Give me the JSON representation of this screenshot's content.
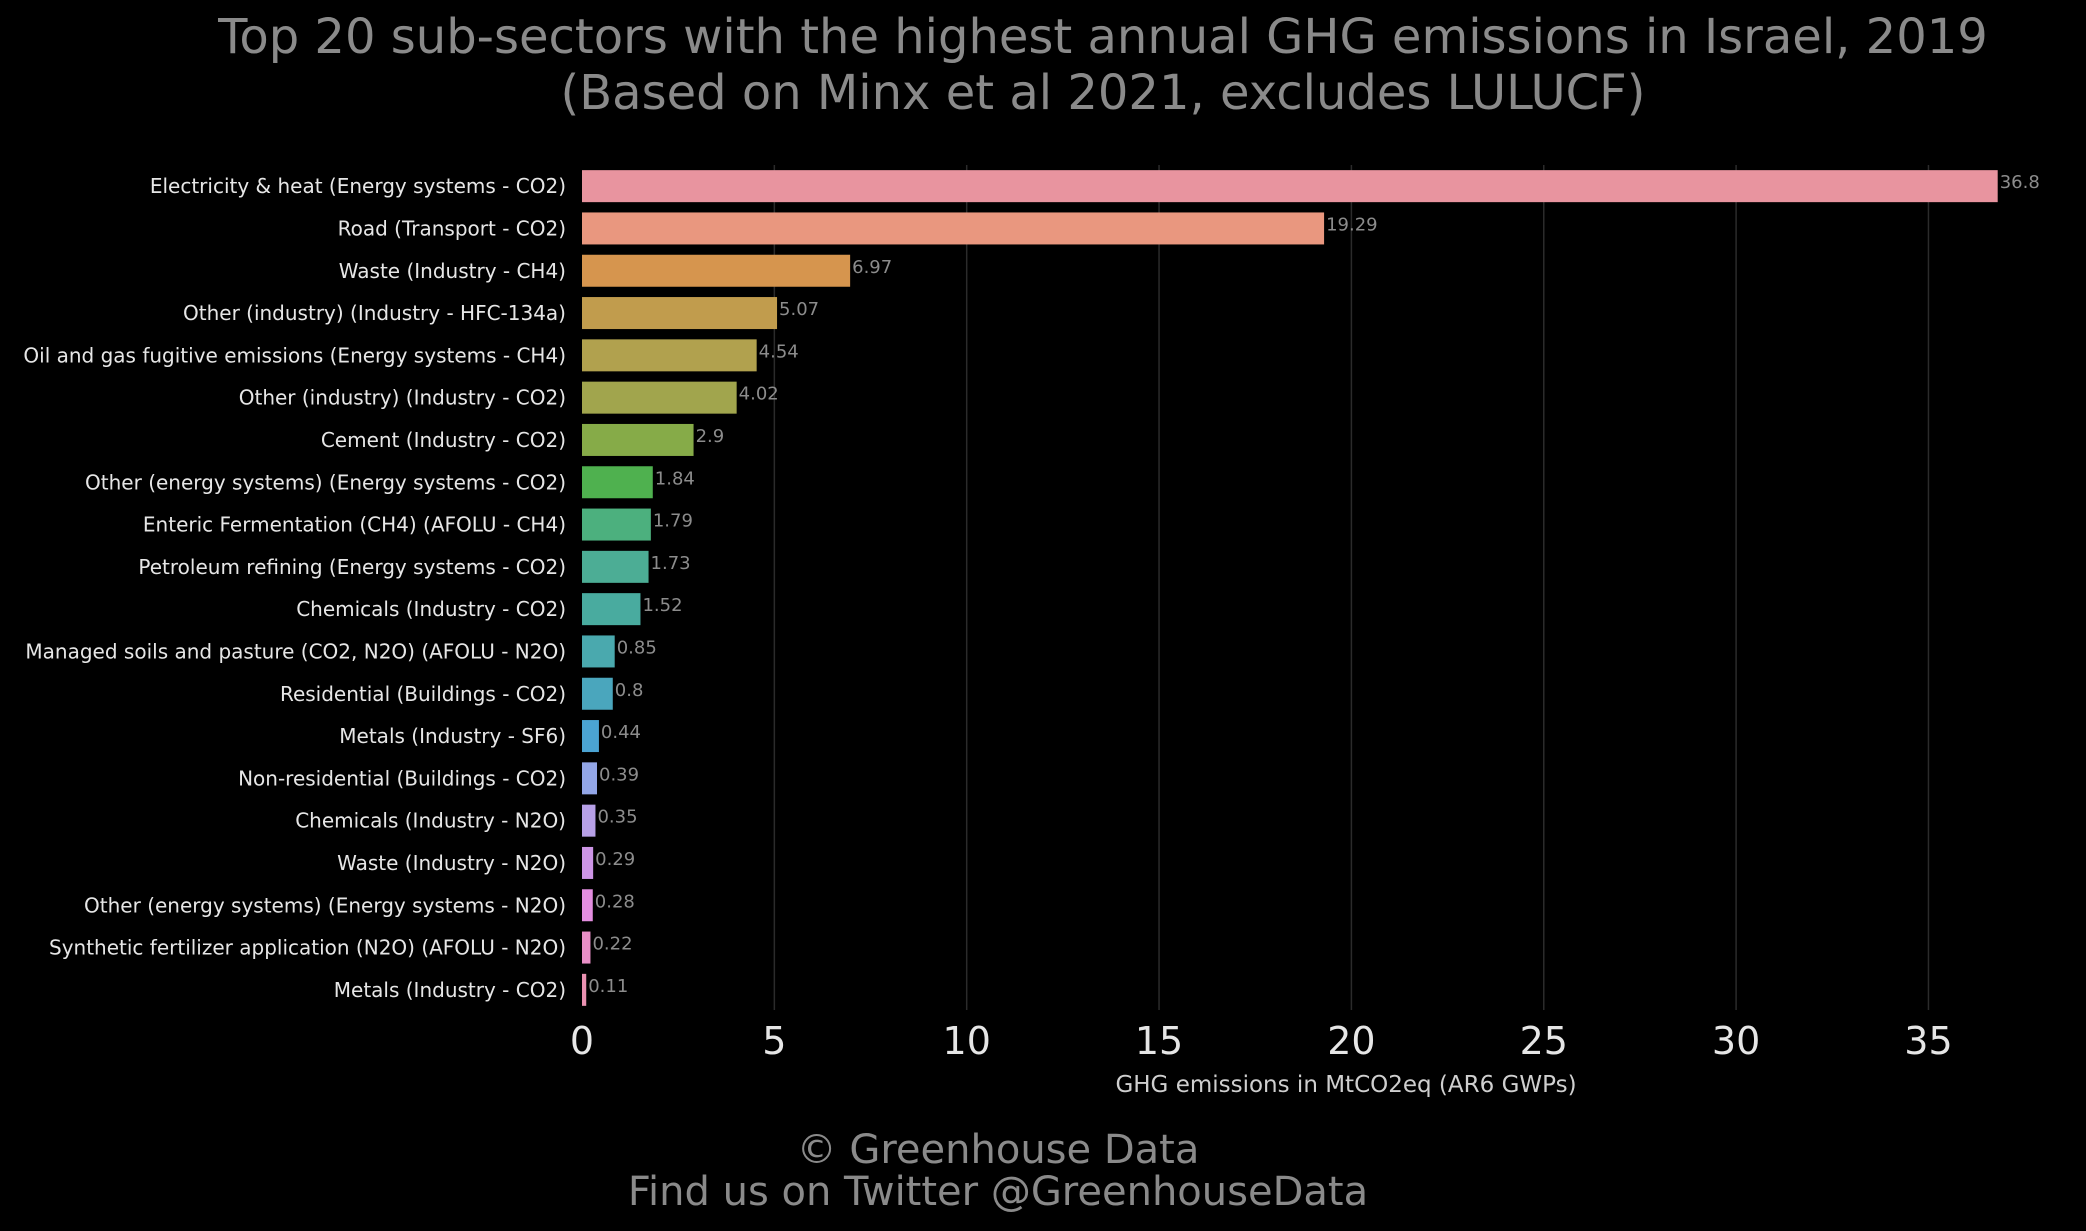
{
  "chart_data": {
    "type": "bar",
    "orientation": "horizontal",
    "title": "Top 20 sub-sectors with the highest annual GHG emissions in Israel, 2019",
    "subtitle": "(Based on Minx et al 2021, excludes LULUCF)",
    "xlabel": "GHG emissions in MtCO2eq (AR6 GWPs)",
    "ylabel": "",
    "xlim": [
      0,
      37.5
    ],
    "xticks": [
      0,
      5,
      10,
      15,
      20,
      25,
      30,
      35
    ],
    "grid": "vertical",
    "categories": [
      "Electricity & heat (Energy systems - CO2)",
      "Road (Transport - CO2)",
      "Waste (Industry - CH4)",
      "Other (industry) (Industry - HFC-134a)",
      "Oil and gas fugitive emissions (Energy systems - CH4)",
      "Other (industry) (Industry - CO2)",
      "Cement (Industry - CO2)",
      "Other (energy systems) (Energy systems - CO2)",
      "Enteric Fermentation (CH4) (AFOLU - CH4)",
      "Petroleum refining (Energy systems - CO2)",
      "Chemicals (Industry - CO2)",
      "Managed soils and pasture (CO2, N2O) (AFOLU - N2O)",
      "Residential (Buildings - CO2)",
      "Metals (Industry - SF6)",
      "Non-residential (Buildings - CO2)",
      "Chemicals (Industry - N2O)",
      "Waste (Industry - N2O)",
      "Other (energy systems) (Energy systems - N2O)",
      "Synthetic fertilizer application (N2O) (AFOLU - N2O)",
      "Metals (Industry - CO2)"
    ],
    "values": [
      36.8,
      19.29,
      6.97,
      5.07,
      4.54,
      4.02,
      2.9,
      1.84,
      1.79,
      1.73,
      1.52,
      0.85,
      0.8,
      0.44,
      0.39,
      0.35,
      0.29,
      0.28,
      0.22,
      0.11
    ],
    "value_labels": [
      "36.8",
      "19.29",
      "6.97",
      "5.07",
      "4.54",
      "4.02",
      "2.9",
      "1.84",
      "1.79",
      "1.73",
      "1.52",
      "0.85",
      "0.8",
      "0.44",
      "0.39",
      "0.35",
      "0.29",
      "0.28",
      "0.22",
      "0.11"
    ],
    "colors": [
      "#e8949f",
      "#e9977f",
      "#d6954e",
      "#c19c4d",
      "#b1a14e",
      "#a1a54d",
      "#86ab48",
      "#4fb14f",
      "#4cb07e",
      "#4cad95",
      "#49ab9f",
      "#4aa9ae",
      "#4aa6bd",
      "#4ba4d3",
      "#93a6e7",
      "#b7a0e7",
      "#cd95e6",
      "#e38ee0",
      "#e98fc7",
      "#ea91b1"
    ]
  },
  "footer": {
    "copyright": "© Greenhouse Data",
    "twitter": "Find us on Twitter @GreenhouseData"
  }
}
